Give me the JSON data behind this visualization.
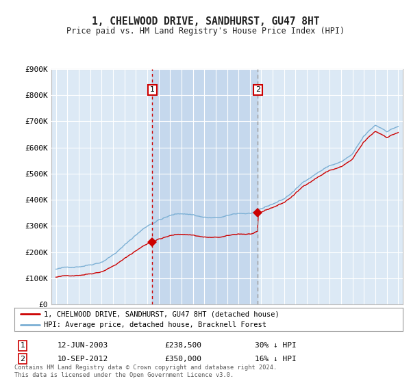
{
  "title": "1, CHELWOOD DRIVE, SANDHURST, GU47 8HT",
  "subtitle": "Price paid vs. HM Land Registry's House Price Index (HPI)",
  "ylim": [
    0,
    900000
  ],
  "yticks": [
    0,
    100000,
    200000,
    300000,
    400000,
    500000,
    600000,
    700000,
    800000,
    900000
  ],
  "ytick_labels": [
    "£0",
    "£100K",
    "£200K",
    "£300K",
    "£400K",
    "£500K",
    "£600K",
    "£700K",
    "£800K",
    "£900K"
  ],
  "sale1_year": 2003.45,
  "sale1_price": 238500,
  "sale1_date_str": "12-JUN-2003",
  "sale1_price_str": "£238,500",
  "sale1_pct_str": "30% ↓ HPI",
  "sale2_year": 2012.7,
  "sale2_price": 350000,
  "sale2_date_str": "10-SEP-2012",
  "sale2_price_str": "£350,000",
  "sale2_pct_str": "16% ↓ HPI",
  "legend1_label": "1, CHELWOOD DRIVE, SANDHURST, GU47 8HT (detached house)",
  "legend2_label": "HPI: Average price, detached house, Bracknell Forest",
  "footer": "Contains HM Land Registry data © Crown copyright and database right 2024.\nThis data is licensed under the Open Government Licence v3.0.",
  "sale_line_color": "#cc0000",
  "hpi_line_color": "#7bafd4",
  "sale_marker_color": "#cc0000",
  "background_color": "#ffffff",
  "plot_bg_color": "#dce9f5",
  "shaded_region_color": "#c5d8ed",
  "grid_color": "#ffffff",
  "sale1_vline_color": "#cc0000",
  "sale2_vline_color": "#999999",
  "box_label_color": "#cc0000"
}
